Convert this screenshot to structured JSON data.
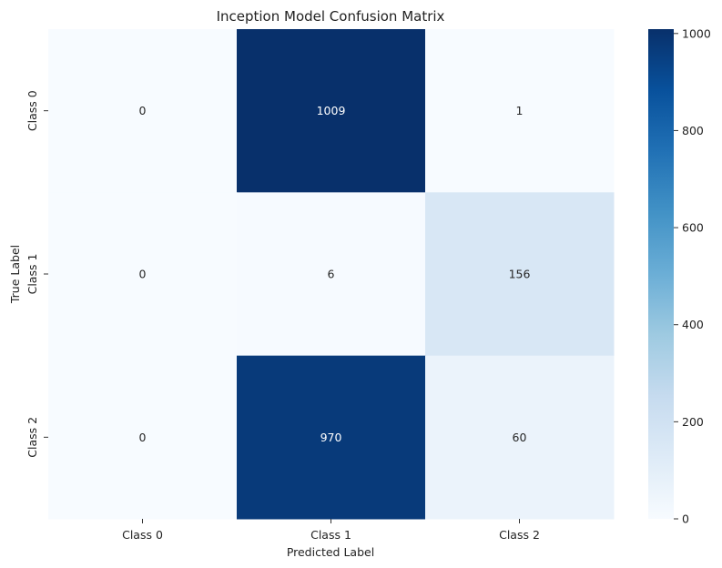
{
  "chart_data": {
    "type": "heatmap",
    "title": "Inception Model Confusion Matrix",
    "xlabel": "Predicted Label",
    "ylabel": "True Label",
    "x_categories": [
      "Class 0",
      "Class 1",
      "Class 2"
    ],
    "y_categories": [
      "Class 0",
      "Class 1",
      "Class 2"
    ],
    "values": [
      [
        0,
        1009,
        1
      ],
      [
        0,
        6,
        156
      ],
      [
        0,
        970,
        60
      ]
    ],
    "colorbar": {
      "min": 0,
      "max": 1009,
      "ticks": [
        0,
        200,
        400,
        600,
        800,
        1000
      ],
      "colormap": "Blues"
    },
    "colors": {
      "low": "#f7fbff",
      "high": "#08306b",
      "text_dark": "#262626",
      "text_light": "#ffffff"
    }
  }
}
